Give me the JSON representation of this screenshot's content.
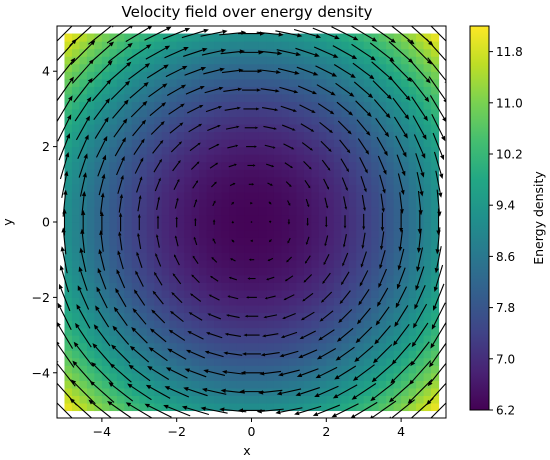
{
  "chart_data": {
    "type": "heatmap",
    "title": "Velocity field over energy density",
    "xlabel": "x",
    "ylabel": "y",
    "xlim": [
      -5.2,
      5.2
    ],
    "ylim": [
      -5.2,
      5.2
    ],
    "grid": false,
    "x_ticks": [
      -4,
      -2,
      0,
      2,
      4
    ],
    "y_ticks": [
      -4,
      -2,
      0,
      2,
      4
    ],
    "x_tick_labels": [
      "−4",
      "−2",
      "0",
      "2",
      "4"
    ],
    "y_tick_labels": [
      "−4",
      "−2",
      "0",
      "2",
      "4"
    ],
    "field": {
      "domain": [
        -5,
        5
      ],
      "colormap": "viridis",
      "energy_min": 6.2,
      "energy_max": 12.2,
      "energy_center": 6.25,
      "energy_corner": 12.2
    },
    "quiver": {
      "grid_points": [
        -5.0,
        -4.5,
        -4.0,
        -3.5,
        -3.0,
        -2.5,
        -2.0,
        -1.5,
        -1.0,
        -0.5,
        0.0,
        0.5,
        1.0,
        1.5,
        2.0,
        2.5,
        3.0,
        3.5,
        4.0,
        4.5,
        5.0
      ],
      "rotation": "clockwise",
      "color": "#000000"
    },
    "colorbar": {
      "label": "Energy density",
      "ticks": [
        6.2,
        7.0,
        7.8,
        8.6,
        9.4,
        10.2,
        11.0,
        11.8
      ],
      "tick_labels": [
        "6.2",
        "7.0",
        "7.8",
        "8.6",
        "9.4",
        "10.2",
        "11.0",
        "11.8"
      ],
      "range": [
        6.2,
        12.2
      ]
    }
  }
}
